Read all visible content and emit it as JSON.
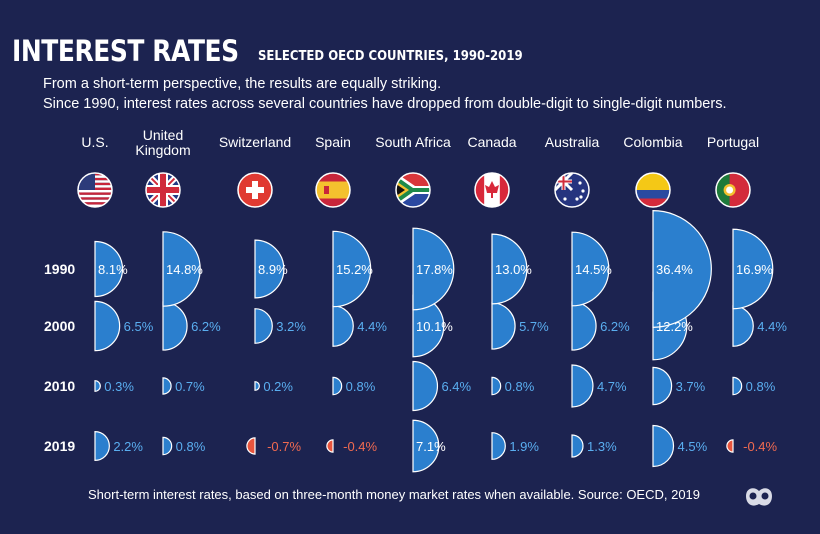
{
  "header": {
    "title": "INTEREST RATES",
    "subtitle": "SELECTED OECD COUNTRIES, 1990-2019",
    "intro_line1": "From a short-term perspective, the results are equally striking.",
    "intro_line2": "Since 1990, interest rates across several countries have dropped from double-digit to single-digit numbers."
  },
  "footer": {
    "note": "Short-term interest rates, based on three-month money market rates when available. Source: OECD, 2019"
  },
  "colors": {
    "background": "#1c2350",
    "positive": "#2b7fce",
    "negative": "#e8553d",
    "label_positive": "#5aaef0",
    "label_negative": "#f06a50"
  },
  "chart_data": {
    "type": "half-circle bubble chart",
    "categories": [
      "U.S.",
      "United Kingdom",
      "Switzerland",
      "Spain",
      "South Africa",
      "Canada",
      "Australia",
      "Colombia",
      "Portugal"
    ],
    "flags": [
      "us-flag-icon",
      "uk-flag-icon",
      "switzerland-flag-icon",
      "spain-flag-icon",
      "south-africa-flag-icon",
      "canada-flag-icon",
      "australia-flag-icon",
      "colombia-flag-icon",
      "portugal-flag-icon"
    ],
    "years": [
      "1990",
      "2000",
      "2010",
      "2019"
    ],
    "unit": "%",
    "series": [
      {
        "name": "U.S.",
        "values": [
          8.1,
          6.5,
          0.3,
          2.2
        ]
      },
      {
        "name": "United Kingdom",
        "values": [
          14.8,
          6.2,
          0.7,
          0.8
        ]
      },
      {
        "name": "Switzerland",
        "values": [
          8.9,
          3.2,
          0.2,
          -0.7
        ]
      },
      {
        "name": "Spain",
        "values": [
          15.2,
          4.4,
          0.8,
          -0.4
        ]
      },
      {
        "name": "South Africa",
        "values": [
          17.8,
          10.1,
          6.4,
          7.1
        ]
      },
      {
        "name": "Canada",
        "values": [
          13.0,
          5.7,
          0.8,
          1.9
        ]
      },
      {
        "name": "Australia",
        "values": [
          14.5,
          6.2,
          4.7,
          1.3
        ]
      },
      {
        "name": "Colombia",
        "values": [
          36.4,
          12.2,
          3.7,
          4.5
        ]
      },
      {
        "name": "Portugal",
        "values": [
          16.9,
          4.4,
          0.8,
          -0.4
        ]
      }
    ]
  }
}
